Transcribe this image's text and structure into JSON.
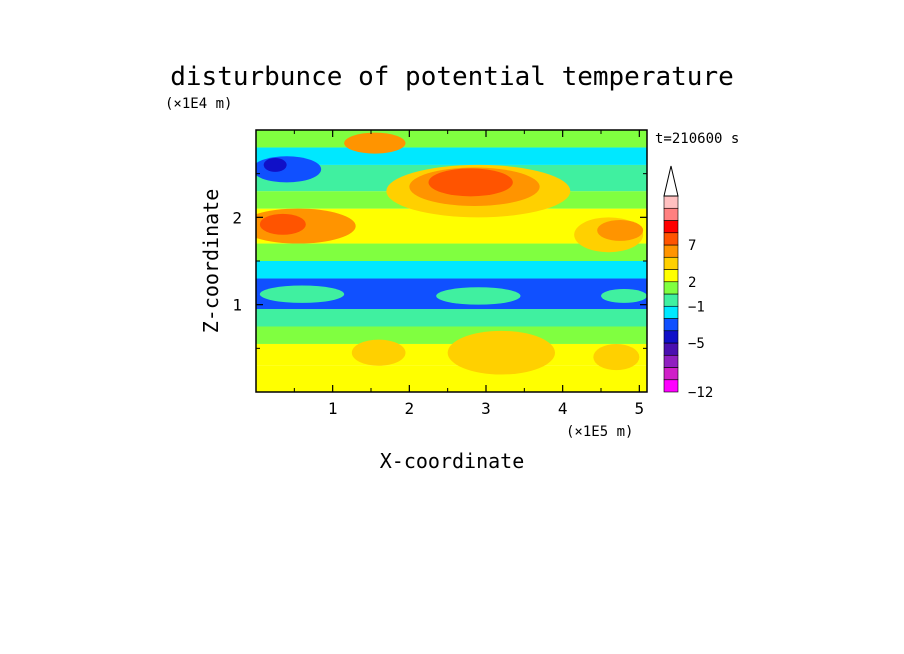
{
  "chart_data": {
    "type": "heatmap",
    "title": "disturbunce of potential temperature",
    "xlabel": "X-coordinate",
    "ylabel": "Z-coordinate",
    "x_unit": "(×1E5 m)",
    "y_unit": "(×1E4 m)",
    "annotation": "t=210600 s",
    "xlim": [
      0,
      5.1
    ],
    "ylim": [
      0,
      3
    ],
    "x_ticks": [
      1,
      2,
      3,
      4,
      5
    ],
    "x_tick_labels": [
      "1",
      "2",
      "3",
      "4",
      "5"
    ],
    "y_ticks": [
      1,
      2
    ],
    "y_tick_labels": [
      "1",
      "2"
    ],
    "colorbar": {
      "colors": [
        "#ff00ff",
        "#d020c8",
        "#9020c0",
        "#4a10b0",
        "#1010c8",
        "#1050ff",
        "#00e8ff",
        "#40f0a0",
        "#80ff40",
        "#ffff00",
        "#ffd000",
        "#ff9400",
        "#ff5400",
        "#ff0000",
        "#ff8080",
        "#ffc0c0"
      ],
      "tick_labels": [
        "−12",
        "−5",
        "−1",
        "2",
        "7"
      ],
      "tick_bins": [
        0,
        4,
        7,
        9,
        12
      ],
      "extend": "max"
    },
    "bands": [
      {
        "z": [
          0.0,
          0.3
        ],
        "level": 9
      },
      {
        "z": [
          0.3,
          0.55
        ],
        "level": 9
      },
      {
        "z": [
          0.55,
          0.75
        ],
        "level": 8
      },
      {
        "z": [
          0.75,
          0.95
        ],
        "level": 7
      },
      {
        "z": [
          0.95,
          1.3
        ],
        "level": 5
      },
      {
        "z": [
          1.3,
          1.5
        ],
        "level": 6
      },
      {
        "z": [
          1.5,
          1.7
        ],
        "level": 8
      },
      {
        "z": [
          1.7,
          2.1
        ],
        "level": 9
      },
      {
        "z": [
          2.1,
          2.3
        ],
        "level": 8
      },
      {
        "z": [
          2.3,
          2.6
        ],
        "level": 7
      },
      {
        "z": [
          2.6,
          2.8
        ],
        "level": 6
      },
      {
        "z": [
          2.8,
          3.0
        ],
        "level": 8
      }
    ],
    "features": [
      {
        "x": 0.55,
        "z": 1.9,
        "rx": 0.75,
        "rz": 0.2,
        "level": 11
      },
      {
        "x": 0.35,
        "z": 1.92,
        "rx": 0.3,
        "rz": 0.12,
        "level": 12
      },
      {
        "x": 2.9,
        "z": 2.3,
        "rx": 1.2,
        "rz": 0.3,
        "level": 10
      },
      {
        "x": 2.85,
        "z": 2.35,
        "rx": 0.85,
        "rz": 0.22,
        "level": 11
      },
      {
        "x": 2.8,
        "z": 2.4,
        "rx": 0.55,
        "rz": 0.16,
        "level": 12
      },
      {
        "x": 4.6,
        "z": 1.8,
        "rx": 0.45,
        "rz": 0.2,
        "level": 10
      },
      {
        "x": 4.75,
        "z": 1.85,
        "rx": 0.3,
        "rz": 0.12,
        "level": 11
      },
      {
        "x": 1.55,
        "z": 2.85,
        "rx": 0.4,
        "rz": 0.12,
        "level": 11
      },
      {
        "x": 0.4,
        "z": 2.55,
        "rx": 0.45,
        "rz": 0.15,
        "level": 5
      },
      {
        "x": 0.25,
        "z": 2.6,
        "rx": 0.15,
        "rz": 0.08,
        "level": 4
      },
      {
        "x": 0.6,
        "z": 1.12,
        "rx": 0.55,
        "rz": 0.1,
        "level": 7
      },
      {
        "x": 2.9,
        "z": 1.1,
        "rx": 0.55,
        "rz": 0.1,
        "level": 7
      },
      {
        "x": 4.8,
        "z": 1.1,
        "rx": 0.3,
        "rz": 0.08,
        "level": 7
      },
      {
        "x": 3.2,
        "z": 0.45,
        "rx": 0.7,
        "rz": 0.25,
        "level": 10
      },
      {
        "x": 1.6,
        "z": 0.45,
        "rx": 0.35,
        "rz": 0.15,
        "level": 10
      },
      {
        "x": 4.7,
        "z": 0.4,
        "rx": 0.3,
        "rz": 0.15,
        "level": 10
      }
    ]
  }
}
